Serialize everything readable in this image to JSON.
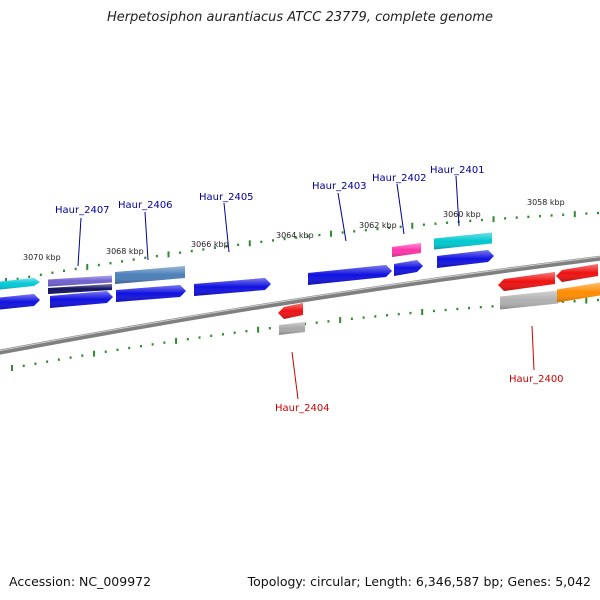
{
  "title": "Herpetosiphon aurantiacus ATCC 23779, complete genome",
  "footer": {
    "accession": "Accession: NC_009972",
    "stats": "Topology: circular; Length: 6,346,587 bp; Genes: 5,042"
  },
  "colors": {
    "backbone": "#7f7f7f",
    "ticks": "#2e8b2e",
    "forward_label": "#000099",
    "reverse_label": "#cc0000"
  },
  "ticks": [
    "3070 kbp",
    "3068 kbp",
    "3066 kbp",
    "3064 kbp",
    "3062 kbp",
    "3060 kbp",
    "3058 kbp"
  ],
  "gene_labels": [
    {
      "text": "Haur_2407",
      "strand": "forward"
    },
    {
      "text": "Haur_2406",
      "strand": "forward"
    },
    {
      "text": "Haur_2405",
      "strand": "forward"
    },
    {
      "text": "Haur_2403",
      "strand": "forward"
    },
    {
      "text": "Haur_2402",
      "strand": "forward"
    },
    {
      "text": "Haur_2401",
      "strand": "forward"
    },
    {
      "text": "Haur_2404",
      "strand": "reverse"
    },
    {
      "text": "Haur_2400",
      "strand": "reverse"
    }
  ],
  "features": [
    {
      "name": "feature-cyan-left",
      "color": "#00c8d8",
      "lane": "top"
    },
    {
      "name": "feature-blue-left",
      "color": "#1010e0",
      "lane": "main"
    },
    {
      "name": "feature-violet-2407",
      "color": "#7060d0",
      "lane": "top"
    },
    {
      "name": "feature-navy-2407",
      "color": "#101060",
      "lane": "top2"
    },
    {
      "name": "feature-blue-2407",
      "color": "#1010e0",
      "lane": "main"
    },
    {
      "name": "feature-steel-2406",
      "color": "#4a7fb8",
      "lane": "top"
    },
    {
      "name": "feature-blue-2406",
      "color": "#1010e0",
      "lane": "main"
    },
    {
      "name": "feature-blue-2405",
      "color": "#1010e0",
      "lane": "main"
    },
    {
      "name": "feature-blue-2403",
      "color": "#1010e0",
      "lane": "main"
    },
    {
      "name": "feature-pink-2402",
      "color": "#ff33aa",
      "lane": "top"
    },
    {
      "name": "feature-blue-2402",
      "color": "#1010e0",
      "lane": "main"
    },
    {
      "name": "feature-cyan-2401",
      "color": "#00c8d0",
      "lane": "top"
    },
    {
      "name": "feature-blue-2401",
      "color": "#1010e0",
      "lane": "main"
    },
    {
      "name": "feature-red-2404",
      "color": "#ee1111",
      "lane": "reverse"
    },
    {
      "name": "feature-gray-2404",
      "color": "#a8a8a8",
      "lane": "reverse2"
    },
    {
      "name": "feature-red-2400-a",
      "color": "#ee1111",
      "lane": "reverse"
    },
    {
      "name": "feature-red-2400-b",
      "color": "#ee1111",
      "lane": "reverse"
    },
    {
      "name": "feature-gray-2400",
      "color": "#b0b0b0",
      "lane": "reverse2"
    },
    {
      "name": "feature-orange-2400",
      "color": "#ff8c00",
      "lane": "reverse2"
    }
  ]
}
